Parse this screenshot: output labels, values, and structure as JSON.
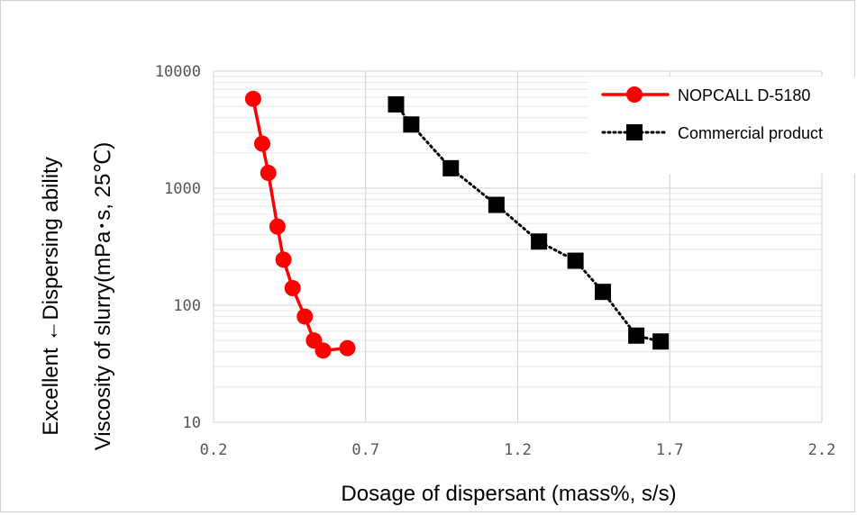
{
  "chart_data": {
    "type": "scatter",
    "xlabel": "Dosage of dispersant (mass%, s/s)",
    "ylabel": "Viscosity of slurry(mPa･s, 25℃)",
    "ylabel_outer": "Excellent  ←Dispersing ability",
    "xlim": [
      0.2,
      2.2
    ],
    "ylim": [
      10,
      10000
    ],
    "yscale": "log",
    "x_ticks": [
      "0.2",
      "0.7",
      "1.2",
      "1.7",
      "2.2"
    ],
    "y_ticks": [
      "10",
      "100",
      "1000",
      "10000"
    ],
    "grid": true,
    "legend_position": "top-right",
    "series": [
      {
        "name": "NOPCALL D-5180",
        "color": "#ff0000",
        "marker": "circle",
        "line": "solid",
        "x": [
          0.33,
          0.36,
          0.38,
          0.41,
          0.43,
          0.46,
          0.5,
          0.53,
          0.56,
          0.64
        ],
        "y": [
          5800,
          2400,
          1350,
          470,
          245,
          140,
          80,
          50,
          41,
          43
        ]
      },
      {
        "name": "Commercial product",
        "color": "#000000",
        "marker": "square",
        "line": "dotted",
        "x": [
          0.8,
          0.85,
          0.98,
          1.13,
          1.27,
          1.39,
          1.48,
          1.59,
          1.67
        ],
        "y": [
          5200,
          3500,
          1480,
          720,
          350,
          240,
          130,
          55,
          49
        ]
      }
    ]
  }
}
